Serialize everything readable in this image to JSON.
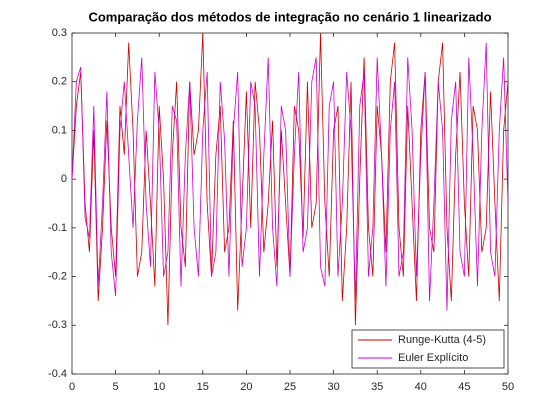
{
  "chart_data": {
    "type": "line",
    "title": "Comparação dos métodos de integração no cenário 1 linearizado",
    "x": [
      0,
      0.5,
      1,
      1.5,
      2,
      2.5,
      3,
      3.5,
      4,
      4.5,
      5,
      5.5,
      6,
      6.5,
      7,
      7.5,
      8,
      8.5,
      9,
      9.5,
      10,
      10.5,
      11,
      11.5,
      12,
      12.5,
      13,
      13.5,
      14,
      14.5,
      15,
      15.5,
      16,
      16.5,
      17,
      17.5,
      18,
      18.5,
      19,
      19.5,
      20,
      20.5,
      21,
      21.5,
      22,
      22.5,
      23,
      23.5,
      24,
      24.5,
      25,
      25.5,
      26,
      26.5,
      27,
      27.5,
      28,
      28.5,
      29,
      29.5,
      30,
      30.5,
      31,
      31.5,
      32,
      32.5,
      33,
      33.5,
      34,
      34.5,
      35,
      35.5,
      36,
      36.5,
      37,
      37.5,
      38,
      38.5,
      39,
      39.5,
      40,
      40.5,
      41,
      41.5,
      42,
      42.5,
      43,
      43.5,
      44,
      44.5,
      45,
      45.5,
      46,
      46.5,
      47,
      47.5,
      48,
      48.5,
      49,
      49.5,
      50
    ],
    "series": [
      {
        "name": "Runge-Kutta (4-5)",
        "color": "#cc0000",
        "values": [
          0,
          0.15,
          0.22,
          -0.05,
          -0.15,
          0.1,
          -0.25,
          -0.1,
          0.12,
          -0.1,
          -0.2,
          0.15,
          0.05,
          0.28,
          0.1,
          -0.2,
          -0.15,
          0.1,
          -0.05,
          -0.22,
          0.15,
          0,
          -0.3,
          0.05,
          0.2,
          -0.1,
          -0.18,
          0.2,
          0.05,
          0.1,
          0.3,
          -0.05,
          -0.2,
          0.05,
          0.15,
          -0.15,
          -0.1,
          0.12,
          -0.27,
          -0.05,
          0.18,
          -0.1,
          0.2,
          0.1,
          -0.15,
          -0.05,
          0.12,
          -0.18,
          0.1,
          -0.05,
          -0.2,
          0.15,
          0.1,
          -0.12,
          0.2,
          -0.1,
          -0.05,
          0.3,
          -0.05,
          -0.2,
          0.1,
          0.15,
          -0.25,
          -0.1,
          0.2,
          -0.3,
          0,
          0.25,
          -0.1,
          -0.2,
          0.15,
          0.05,
          -0.15,
          0.2,
          0.28,
          -0.1,
          -0.2,
          0.15,
          -0.05,
          -0.25,
          0.1,
          0.22,
          -0.1,
          -0.15,
          0.2,
          0.28,
          -0.1,
          -0.25,
          0.05,
          0.22,
          -0.05,
          -0.2,
          0.15,
          0.1,
          -0.15,
          -0.1,
          0.18,
          -0.05,
          -0.25,
          0.1,
          0.2
        ]
      },
      {
        "name": "Euler Explícito",
        "color": "#cc00cc",
        "values": [
          0,
          0.2,
          0.23,
          -0.08,
          -0.12,
          0.15,
          -0.22,
          -0.05,
          0.18,
          -0.15,
          -0.24,
          0.1,
          0.2,
          0.05,
          -0.1,
          0.12,
          0.25,
          -0.05,
          -0.18,
          0.22,
          0.1,
          -0.2,
          -0.15,
          0.15,
          0.12,
          -0.22,
          0.05,
          0.2,
          -0.1,
          -0.2,
          0.1,
          0.22,
          -0.2,
          -0.15,
          0.2,
          0.08,
          -0.2,
          0.1,
          0.22,
          -0.18,
          -0.1,
          0.2,
          0.15,
          -0.2,
          0.05,
          0.25,
          -0.1,
          -0.22,
          0.15,
          0.1,
          -0.2,
          0.05,
          0.22,
          -0.15,
          -0.1,
          0.2,
          0.25,
          -0.18,
          -0.22,
          0.15,
          0.2,
          -0.2,
          -0.05,
          0.22,
          0.1,
          -0.25,
          0.15,
          0.22,
          -0.2,
          -0.1,
          0.25,
          0.05,
          -0.22,
          0.1,
          0.2,
          -0.2,
          -0.15,
          0.25,
          0.1,
          -0.2,
          0.05,
          0.22,
          -0.25,
          -0.05,
          0.2,
          0.1,
          -0.27,
          0.12,
          0.2,
          -0.15,
          -0.2,
          0.25,
          0.05,
          -0.22,
          0.1,
          0.28,
          -0.15,
          -0.2,
          0.1,
          0.25,
          -0.05
        ]
      }
    ],
    "xlim": [
      0,
      50
    ],
    "xticks": [
      0,
      5,
      10,
      15,
      20,
      25,
      30,
      35,
      40,
      45,
      50
    ],
    "ylim": [
      -0.4,
      0.3
    ],
    "yticks": [
      -0.4,
      -0.3,
      -0.2,
      -0.1,
      0,
      0.1,
      0.2,
      0.3
    ],
    "legend": "lower right"
  }
}
